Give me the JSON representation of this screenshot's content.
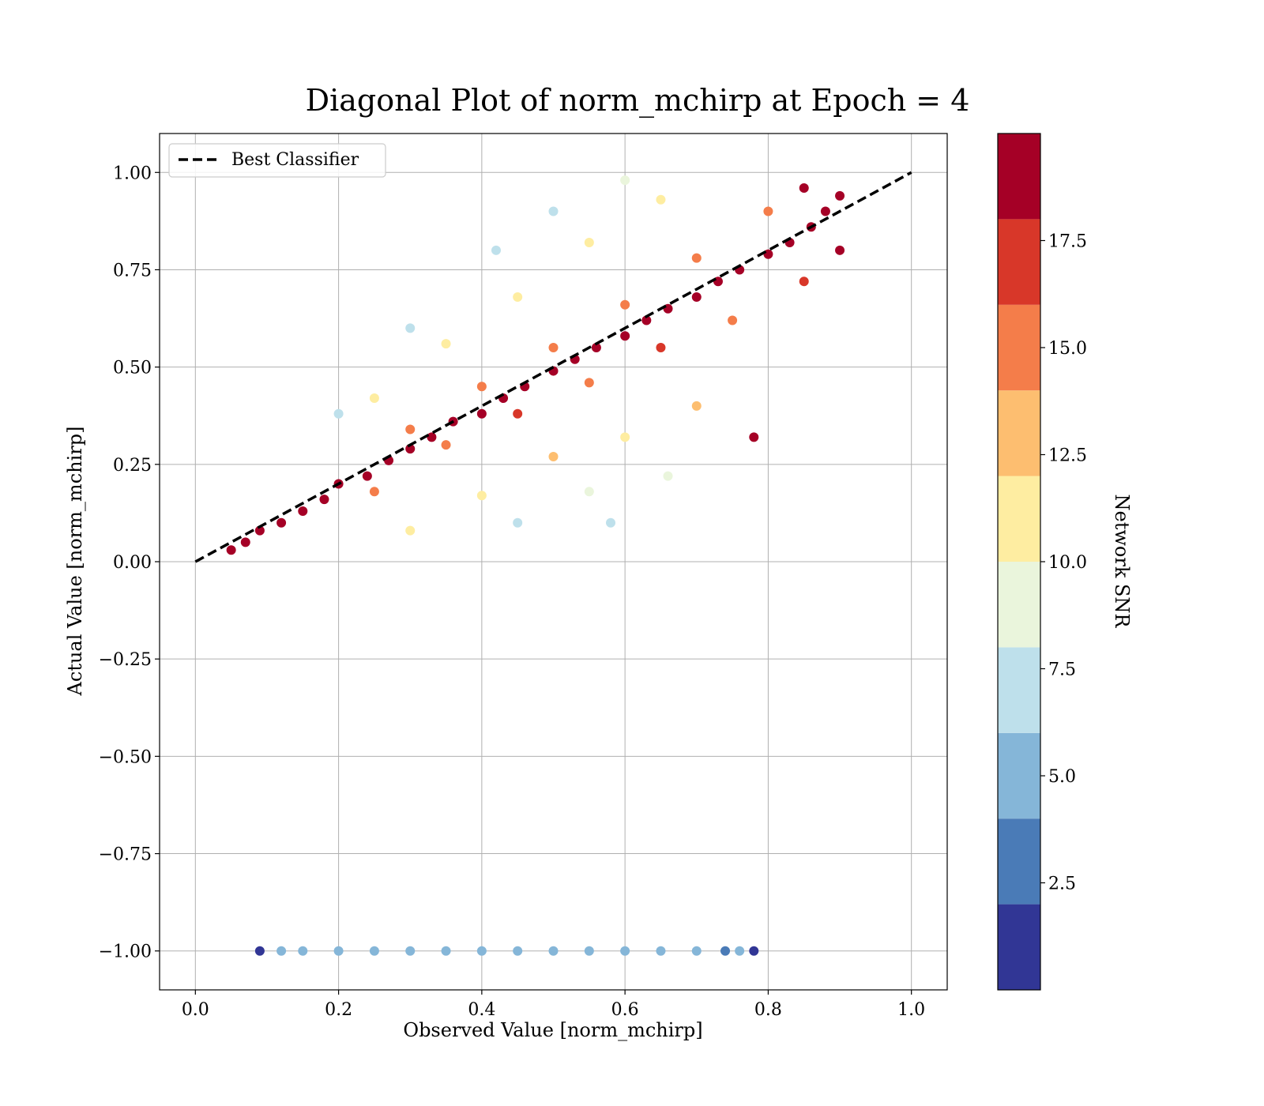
{
  "chart_data": {
    "type": "scatter",
    "title": "Diagonal Plot of norm_mchirp at Epoch = 4",
    "xlabel": "Observed Value [norm_mchirp]",
    "ylabel": "Actual Value [norm_mchirp]",
    "xlim": [
      -0.05,
      1.05
    ],
    "ylim": [
      -1.1,
      1.1
    ],
    "xticks": [
      0.0,
      0.2,
      0.4,
      0.6,
      0.8,
      1.0
    ],
    "xtick_labels": [
      "0.0",
      "0.2",
      "0.4",
      "0.6",
      "0.8",
      "1.0"
    ],
    "yticks": [
      1.0,
      0.75,
      0.5,
      0.25,
      0.0,
      -0.25,
      -0.5,
      -0.75,
      -1.0
    ],
    "ytick_labels": [
      "1.00",
      "0.75",
      "0.50",
      "0.25",
      "0.00",
      "−0.25",
      "−0.50",
      "−0.75",
      "−1.00"
    ],
    "grid": true,
    "legend": {
      "position": "upper-left",
      "entries": [
        {
          "label": "Best Classifier",
          "style": "dashed",
          "color": "#000000"
        }
      ]
    },
    "reference_line": {
      "label": "Best Classifier",
      "x": [
        0.0,
        1.0
      ],
      "y": [
        0.0,
        1.0
      ]
    },
    "colorbar": {
      "label": "Network SNR",
      "range": [
        0,
        20
      ],
      "bins": [
        {
          "from": 0,
          "to": 2,
          "color": "#313695"
        },
        {
          "from": 2,
          "to": 4,
          "color": "#4a7bb7"
        },
        {
          "from": 4,
          "to": 6,
          "color": "#85b6d8"
        },
        {
          "from": 6,
          "to": 8,
          "color": "#bee0eb"
        },
        {
          "from": 8,
          "to": 10,
          "color": "#eaf5dc"
        },
        {
          "from": 10,
          "to": 12,
          "color": "#feeda1"
        },
        {
          "from": 12,
          "to": 14,
          "color": "#fdbe70"
        },
        {
          "from": 14,
          "to": 16,
          "color": "#f47d4a"
        },
        {
          "from": 16,
          "to": 18,
          "color": "#d83729"
        },
        {
          "from": 18,
          "to": 20,
          "color": "#a50026"
        }
      ],
      "ticks": [
        2.5,
        5.0,
        7.5,
        10.0,
        12.5,
        15.0,
        17.5
      ],
      "tick_labels": [
        "2.5",
        "5.0",
        "7.5",
        "10.0",
        "12.5",
        "15.0",
        "17.5"
      ]
    },
    "series": [
      {
        "points": [
          [
            0.05,
            0.03,
            19
          ],
          [
            0.07,
            0.05,
            19
          ],
          [
            0.09,
            0.08,
            18
          ],
          [
            0.12,
            0.1,
            19
          ],
          [
            0.15,
            0.13,
            19
          ],
          [
            0.18,
            0.16,
            18
          ],
          [
            0.2,
            0.2,
            19
          ],
          [
            0.24,
            0.22,
            19
          ],
          [
            0.27,
            0.26,
            18
          ],
          [
            0.3,
            0.29,
            19
          ],
          [
            0.33,
            0.32,
            19
          ],
          [
            0.36,
            0.36,
            18
          ],
          [
            0.4,
            0.38,
            19
          ],
          [
            0.43,
            0.42,
            19
          ],
          [
            0.46,
            0.45,
            18
          ],
          [
            0.5,
            0.49,
            19
          ],
          [
            0.53,
            0.52,
            19
          ],
          [
            0.56,
            0.55,
            18
          ],
          [
            0.6,
            0.58,
            19
          ],
          [
            0.63,
            0.62,
            19
          ],
          [
            0.66,
            0.65,
            18
          ],
          [
            0.7,
            0.68,
            19
          ],
          [
            0.73,
            0.72,
            19
          ],
          [
            0.76,
            0.75,
            18
          ],
          [
            0.8,
            0.79,
            19
          ],
          [
            0.83,
            0.82,
            19
          ],
          [
            0.86,
            0.86,
            18
          ],
          [
            0.88,
            0.9,
            19
          ],
          [
            0.9,
            0.94,
            19
          ],
          [
            0.85,
            0.96,
            18
          ],
          [
            0.25,
            0.18,
            15
          ],
          [
            0.35,
            0.3,
            14
          ],
          [
            0.45,
            0.38,
            16
          ],
          [
            0.55,
            0.46,
            15
          ],
          [
            0.65,
            0.55,
            16
          ],
          [
            0.75,
            0.62,
            15
          ],
          [
            0.85,
            0.72,
            16
          ],
          [
            0.3,
            0.34,
            15
          ],
          [
            0.4,
            0.45,
            14
          ],
          [
            0.5,
            0.55,
            15
          ],
          [
            0.6,
            0.66,
            14
          ],
          [
            0.7,
            0.78,
            15
          ],
          [
            0.8,
            0.9,
            14
          ],
          [
            0.3,
            0.08,
            11
          ],
          [
            0.4,
            0.17,
            11
          ],
          [
            0.5,
            0.27,
            12
          ],
          [
            0.6,
            0.32,
            11
          ],
          [
            0.7,
            0.4,
            12
          ],
          [
            0.25,
            0.42,
            11
          ],
          [
            0.35,
            0.56,
            10
          ],
          [
            0.45,
            0.68,
            11
          ],
          [
            0.55,
            0.82,
            10
          ],
          [
            0.65,
            0.93,
            11
          ],
          [
            0.2,
            0.38,
            7
          ],
          [
            0.3,
            0.6,
            7
          ],
          [
            0.42,
            0.8,
            7
          ],
          [
            0.5,
            0.9,
            7
          ],
          [
            0.6,
            0.98,
            8
          ],
          [
            0.45,
            0.1,
            7
          ],
          [
            0.55,
            0.18,
            8
          ],
          [
            0.58,
            0.1,
            7
          ],
          [
            0.66,
            0.22,
            8
          ],
          [
            0.78,
            0.32,
            18
          ],
          [
            0.9,
            0.8,
            18
          ],
          [
            0.09,
            -1.0,
            1
          ],
          [
            0.12,
            -1.0,
            5
          ],
          [
            0.15,
            -1.0,
            5
          ],
          [
            0.2,
            -1.0,
            5
          ],
          [
            0.25,
            -1.0,
            5
          ],
          [
            0.3,
            -1.0,
            5
          ],
          [
            0.35,
            -1.0,
            5
          ],
          [
            0.4,
            -1.0,
            5
          ],
          [
            0.45,
            -1.0,
            5
          ],
          [
            0.5,
            -1.0,
            5
          ],
          [
            0.55,
            -1.0,
            5
          ],
          [
            0.6,
            -1.0,
            5
          ],
          [
            0.65,
            -1.0,
            5
          ],
          [
            0.7,
            -1.0,
            5
          ],
          [
            0.74,
            -1.0,
            3
          ],
          [
            0.76,
            -1.0,
            5
          ],
          [
            0.78,
            -1.0,
            1
          ]
        ]
      }
    ]
  }
}
